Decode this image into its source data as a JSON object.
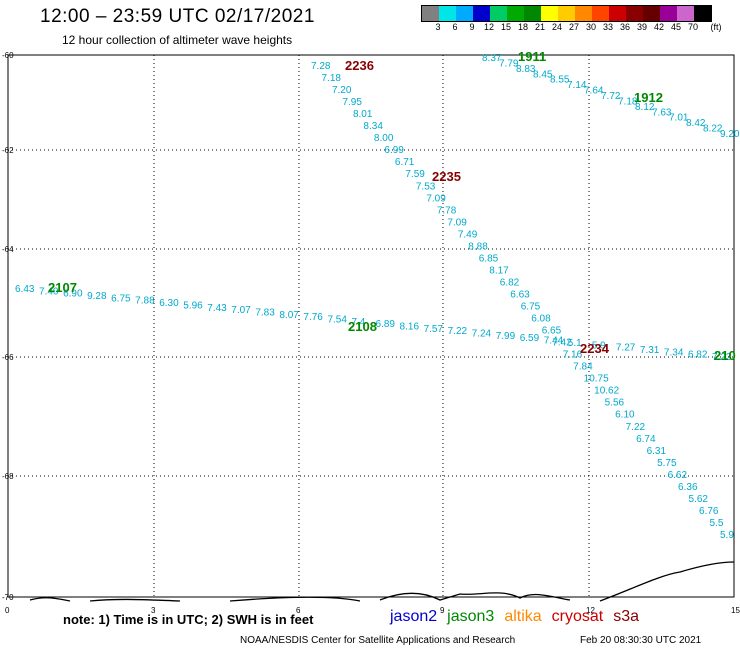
{
  "header": {
    "title": "12:00 – 23:59 UTC 02/17/2021",
    "subtitle": "12 hour collection of altimeter wave heights"
  },
  "colorbar": {
    "colors": [
      "#808080",
      "#00e6e6",
      "#00aaff",
      "#0000cc",
      "#00cc66",
      "#00aa00",
      "#008800",
      "#ffff00",
      "#ffcc00",
      "#ff8800",
      "#ff4400",
      "#cc0000",
      "#880000",
      "#660000",
      "#990099",
      "#cc66cc",
      "#000000"
    ],
    "labels": [
      "3",
      "6",
      "9",
      "12",
      "15",
      "18",
      "21",
      "24",
      "27",
      "30",
      "33",
      "36",
      "39",
      "42",
      "45",
      "70",
      "(ft)"
    ]
  },
  "axes": {
    "y_ticks": [
      "-60",
      "-62",
      "-64",
      "-66",
      "-68",
      "-70"
    ],
    "x_ticks": [
      "0",
      "3",
      "6",
      "9",
      "12",
      "15"
    ]
  },
  "passes": [
    {
      "label": "2236",
      "color": "#880000"
    },
    {
      "label": "2235",
      "color": "#880000"
    },
    {
      "label": "2234",
      "color": "#880000"
    },
    {
      "label": "1911",
      "color": "#008800"
    },
    {
      "label": "1912",
      "color": "#008800"
    },
    {
      "label": "2107",
      "color": "#008800"
    },
    {
      "label": "2108",
      "color": "#008800"
    },
    {
      "label": "210",
      "color": "#008800"
    }
  ],
  "track_2236": {
    "color": "#00aacc",
    "values": [
      "7.28",
      "7.18",
      "7.20",
      "7.95",
      "8.01",
      "8.34",
      "8.00",
      "6.99",
      "6.71",
      "7.59",
      "7.53",
      "7.09",
      "7.78",
      "7.09",
      "7.49",
      "8.88",
      "6.85",
      "8.17",
      "6.82",
      "6.63",
      "6.75",
      "6.08",
      "6.65",
      "7.42",
      "7.16",
      "7.84",
      "10.75",
      "10.62",
      "5.56",
      "6.10",
      "7.22",
      "6.74",
      "6.31",
      "5.75",
      "6.62",
      "6.36",
      "5.62",
      "6.76",
      "5.5",
      "5.9"
    ]
  },
  "track_1911": {
    "color": "#00aacc",
    "values": [
      "8.37",
      "7.79",
      "8.83",
      "8.45",
      "8.55",
      "7.14",
      "7.64",
      "7.72",
      "7.18",
      "8.12",
      "7.63",
      "7.01",
      "8.42",
      "8.22",
      "9.20"
    ]
  },
  "track_2107": {
    "color": "#00aacc",
    "values": [
      "6.43",
      "7.40",
      "6.90",
      "9.28",
      "6.75",
      "7.88",
      "6.30",
      "5.96",
      "7.43",
      "7.07",
      "7.83",
      "8.07",
      "7.76",
      "7.54",
      "7.4",
      "6.89",
      "8.16",
      "7.57",
      "7.22",
      "7.24",
      "7.99",
      "6.59",
      "7.44",
      "5.1",
      "5.9",
      "7.27",
      "7.31",
      "7.34",
      "6.82",
      "7.23"
    ]
  },
  "notes": {
    "note": "note: 1) Time is in UTC; 2) SWH is in feet",
    "legend": [
      "jason2",
      "jason3",
      "altika",
      "cryosat",
      "s3a"
    ],
    "legend_colors": [
      "#0000cc",
      "#008800",
      "#ff8800",
      "#cc0000",
      "#880000"
    ],
    "credit": "NOAA/NESDIS Center for Satellite Applications and Research",
    "stamp": "Feb 20 08:30:30 UTC 2021"
  }
}
